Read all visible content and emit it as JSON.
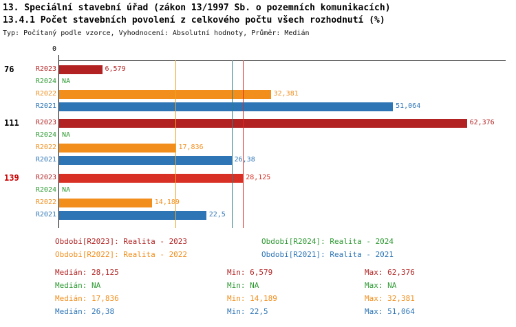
{
  "title_line1": "13. Speciální stavební úřad (zákon 13/1997 Sb. o pozemních komunikacích)",
  "title_line2": "13.4.1 Počet stavebních povolení z celkového počtu všech rozhodnutí (%)",
  "subtitle": "Typ: Počítaný podle vzorce, Vyhodnocení: Absolutní hodnoty, Průměr: Medián",
  "axis": {
    "zero_label": "0"
  },
  "colors": {
    "text": "#000000",
    "highlight": "#cc0000",
    "R2023": "#b22222",
    "R2023_highlight": "#d93025",
    "R2024": "#2e9933",
    "R2022": "#f28e1c",
    "R2021": "#2e75b6",
    "median_R2023": "#e02b20",
    "median_R2022": "#f0a41e",
    "median_R2021": "#2a808a"
  },
  "chart_data": {
    "type": "bar",
    "orientation": "horizontal",
    "title": "13.4.1 Počet stavebních povolení z celkového počtu všech rozhodnutí (%)",
    "xlim": [
      0,
      68
    ],
    "grid": false,
    "categories": [
      "76",
      "111",
      "139"
    ],
    "series_names": [
      "R2023",
      "R2024",
      "R2022",
      "R2021"
    ],
    "groups": [
      {
        "label": "76",
        "highlighted": false,
        "bars": [
          {
            "series": "R2023",
            "value": 6.579,
            "label": "6,579"
          },
          {
            "series": "R2024",
            "value": null,
            "label": "NA"
          },
          {
            "series": "R2022",
            "value": 32.381,
            "label": "32,381"
          },
          {
            "series": "R2021",
            "value": 51.064,
            "label": "51,064"
          }
        ]
      },
      {
        "label": "111",
        "highlighted": false,
        "bars": [
          {
            "series": "R2023",
            "value": 62.376,
            "label": "62,376"
          },
          {
            "series": "R2024",
            "value": null,
            "label": "NA"
          },
          {
            "series": "R2022",
            "value": 17.836,
            "label": "17,836"
          },
          {
            "series": "R2021",
            "value": 26.38,
            "label": "26,38"
          }
        ]
      },
      {
        "label": "139",
        "highlighted": true,
        "bars": [
          {
            "series": "R2023",
            "value": 28.125,
            "label": "28,125"
          },
          {
            "series": "R2024",
            "value": null,
            "label": "NA"
          },
          {
            "series": "R2022",
            "value": 14.189,
            "label": "14,189"
          },
          {
            "series": "R2021",
            "value": 22.5,
            "label": "22,5"
          }
        ]
      }
    ],
    "median_lines": [
      {
        "series": "R2023",
        "value": 28.125
      },
      {
        "series": "R2022",
        "value": 17.836
      },
      {
        "series": "R2021",
        "value": 26.38
      }
    ]
  },
  "legend": [
    {
      "label": "Období[R2023]: Realita - 2023"
    },
    {
      "label": "Období[R2024]: Realita - 2024"
    },
    {
      "label": "Období[R2022]: Realita - 2022"
    },
    {
      "label": "Období[R2021]: Realita - 2021"
    }
  ],
  "stats": [
    {
      "median": "Medián: 28,125",
      "min": "Min: 6,579",
      "max": "Max: 62,376"
    },
    {
      "median": "Medián: NA",
      "min": "Min: NA",
      "max": "Max: NA"
    },
    {
      "median": "Medián: 17,836",
      "min": "Min: 14,189",
      "max": "Max: 32,381"
    },
    {
      "median": "Medián: 26,38",
      "min": "Min: 22,5",
      "max": "Max: 51,064"
    }
  ]
}
